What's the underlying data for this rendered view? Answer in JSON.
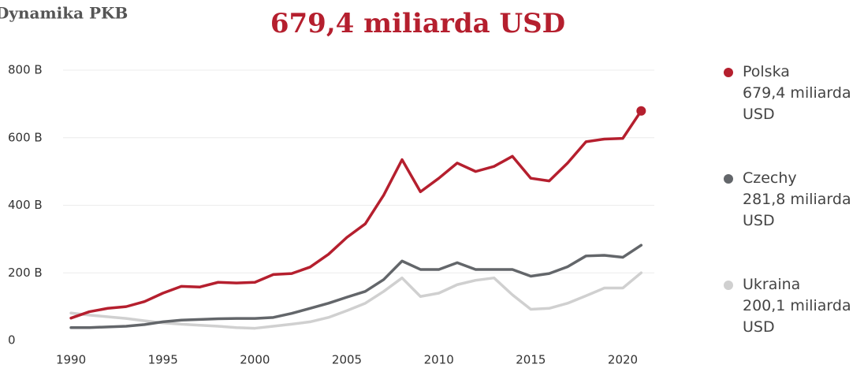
{
  "chart_data": {
    "type": "line",
    "heading": "Dynamika PKB",
    "title": "679,4 miliarda USD",
    "x": [
      1990,
      1991,
      1992,
      1993,
      1994,
      1995,
      1996,
      1997,
      1998,
      1999,
      2000,
      2001,
      2002,
      2003,
      2004,
      2005,
      2006,
      2007,
      2008,
      2009,
      2010,
      2011,
      2012,
      2013,
      2014,
      2015,
      2016,
      2017,
      2018,
      2019,
      2020,
      2021
    ],
    "xlim": [
      1989,
      2023
    ],
    "xticks": [
      1990,
      1995,
      2000,
      2005,
      2010,
      2015,
      2020
    ],
    "ylim": [
      0,
      800
    ],
    "yticks": [
      0,
      {
        "value": 200,
        "label": "200 B"
      },
      {
        "value": 400,
        "label": "400 B"
      },
      {
        "value": 600,
        "label": "600 B"
      },
      {
        "value": 800,
        "label": "800 B"
      }
    ],
    "grid": true,
    "legend": "right",
    "series": [
      {
        "name": "Polska",
        "legend_label": "679,4 miliarda USD",
        "color": "#b51f2e",
        "values": [
          66,
          85,
          95,
          100,
          115,
          140,
          160,
          158,
          172,
          170,
          172,
          195,
          198,
          217,
          255,
          305,
          345,
          430,
          535,
          440,
          480,
          525,
          500,
          515,
          545,
          480,
          472,
          525,
          588,
          596,
          598,
          679.4
        ]
      },
      {
        "name": "Czechy",
        "legend_label": "281,8 miliarda USD",
        "color": "#63666a",
        "values": [
          38,
          38,
          40,
          42,
          47,
          55,
          60,
          62,
          64,
          65,
          65,
          68,
          80,
          95,
          110,
          128,
          145,
          180,
          235,
          210,
          210,
          230,
          210,
          210,
          210,
          190,
          198,
          218,
          250,
          252,
          246,
          281.8
        ]
      },
      {
        "name": "Ukraina",
        "legend_label": "200,1 miliarda USD",
        "color": "#d0d0d0",
        "values": [
          81,
          75,
          70,
          65,
          58,
          52,
          48,
          45,
          42,
          38,
          36,
          42,
          48,
          55,
          68,
          88,
          110,
          145,
          185,
          130,
          140,
          165,
          178,
          185,
          135,
          92,
          95,
          110,
          132,
          155,
          155,
          200.1
        ]
      }
    ]
  }
}
